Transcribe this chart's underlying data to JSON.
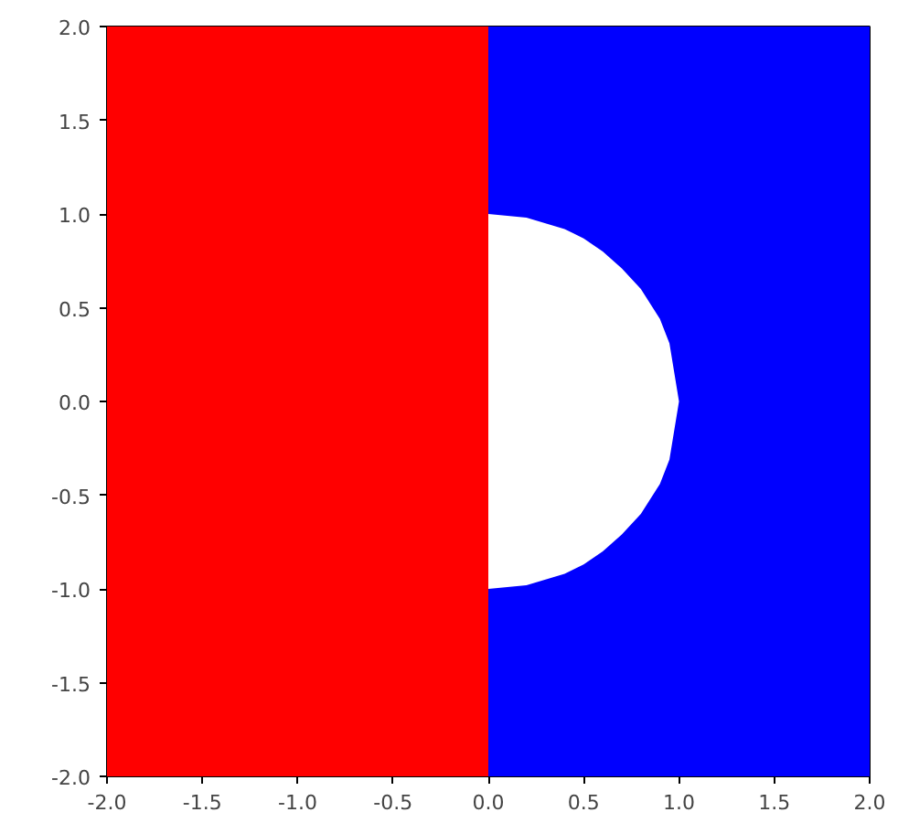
{
  "chart_data": {
    "type": "area",
    "xlim": [
      -2,
      2
    ],
    "ylim": [
      -2,
      2
    ],
    "xticks": [
      {
        "value": -2,
        "label": "-2.0"
      },
      -1.5,
      {
        "value": -1,
        "label": "-1.0"
      },
      -0.5,
      {
        "value": 0,
        "label": "0.0"
      },
      0.5,
      {
        "value": 1,
        "label": "1.0"
      },
      1.5,
      {
        "value": 2,
        "label": "2.0"
      }
    ],
    "yticks": [
      {
        "value": -2,
        "label": "-2.0"
      },
      -1.5,
      {
        "value": -1,
        "label": "-1.0"
      },
      -0.5,
      {
        "value": 0,
        "label": "0.0"
      },
      0.5,
      {
        "value": 1,
        "label": "1.0"
      },
      1.5,
      {
        "value": 2,
        "label": "2.0"
      }
    ],
    "bands": [
      {
        "axis": "x",
        "from": -2,
        "to": 0,
        "color": "#ff0000"
      },
      {
        "axis": "x",
        "from": 0,
        "to": 2,
        "color": "#0000ff"
      }
    ],
    "series": [
      {
        "color": "#ffffff",
        "x": [
          0,
          0.1,
          0.2,
          0.3,
          0.4,
          0.5,
          0.6,
          0.7,
          0.8,
          0.9,
          0.95,
          1
        ],
        "values": [
          1,
          0.99,
          0.98,
          0.95,
          0.92,
          0.87,
          0.8,
          0.71,
          0.6,
          0.44,
          0.31,
          0
        ]
      },
      {
        "color": "#ffffff",
        "x": [
          0,
          0.1,
          0.2,
          0.3,
          0.4,
          0.5,
          0.6,
          0.7,
          0.8,
          0.9,
          0.95,
          1
        ],
        "values": [
          -1,
          -0.99,
          -0.98,
          -0.95,
          -0.92,
          -0.87,
          -0.8,
          -0.71,
          -0.6,
          -0.44,
          -0.31,
          0
        ]
      }
    ]
  }
}
